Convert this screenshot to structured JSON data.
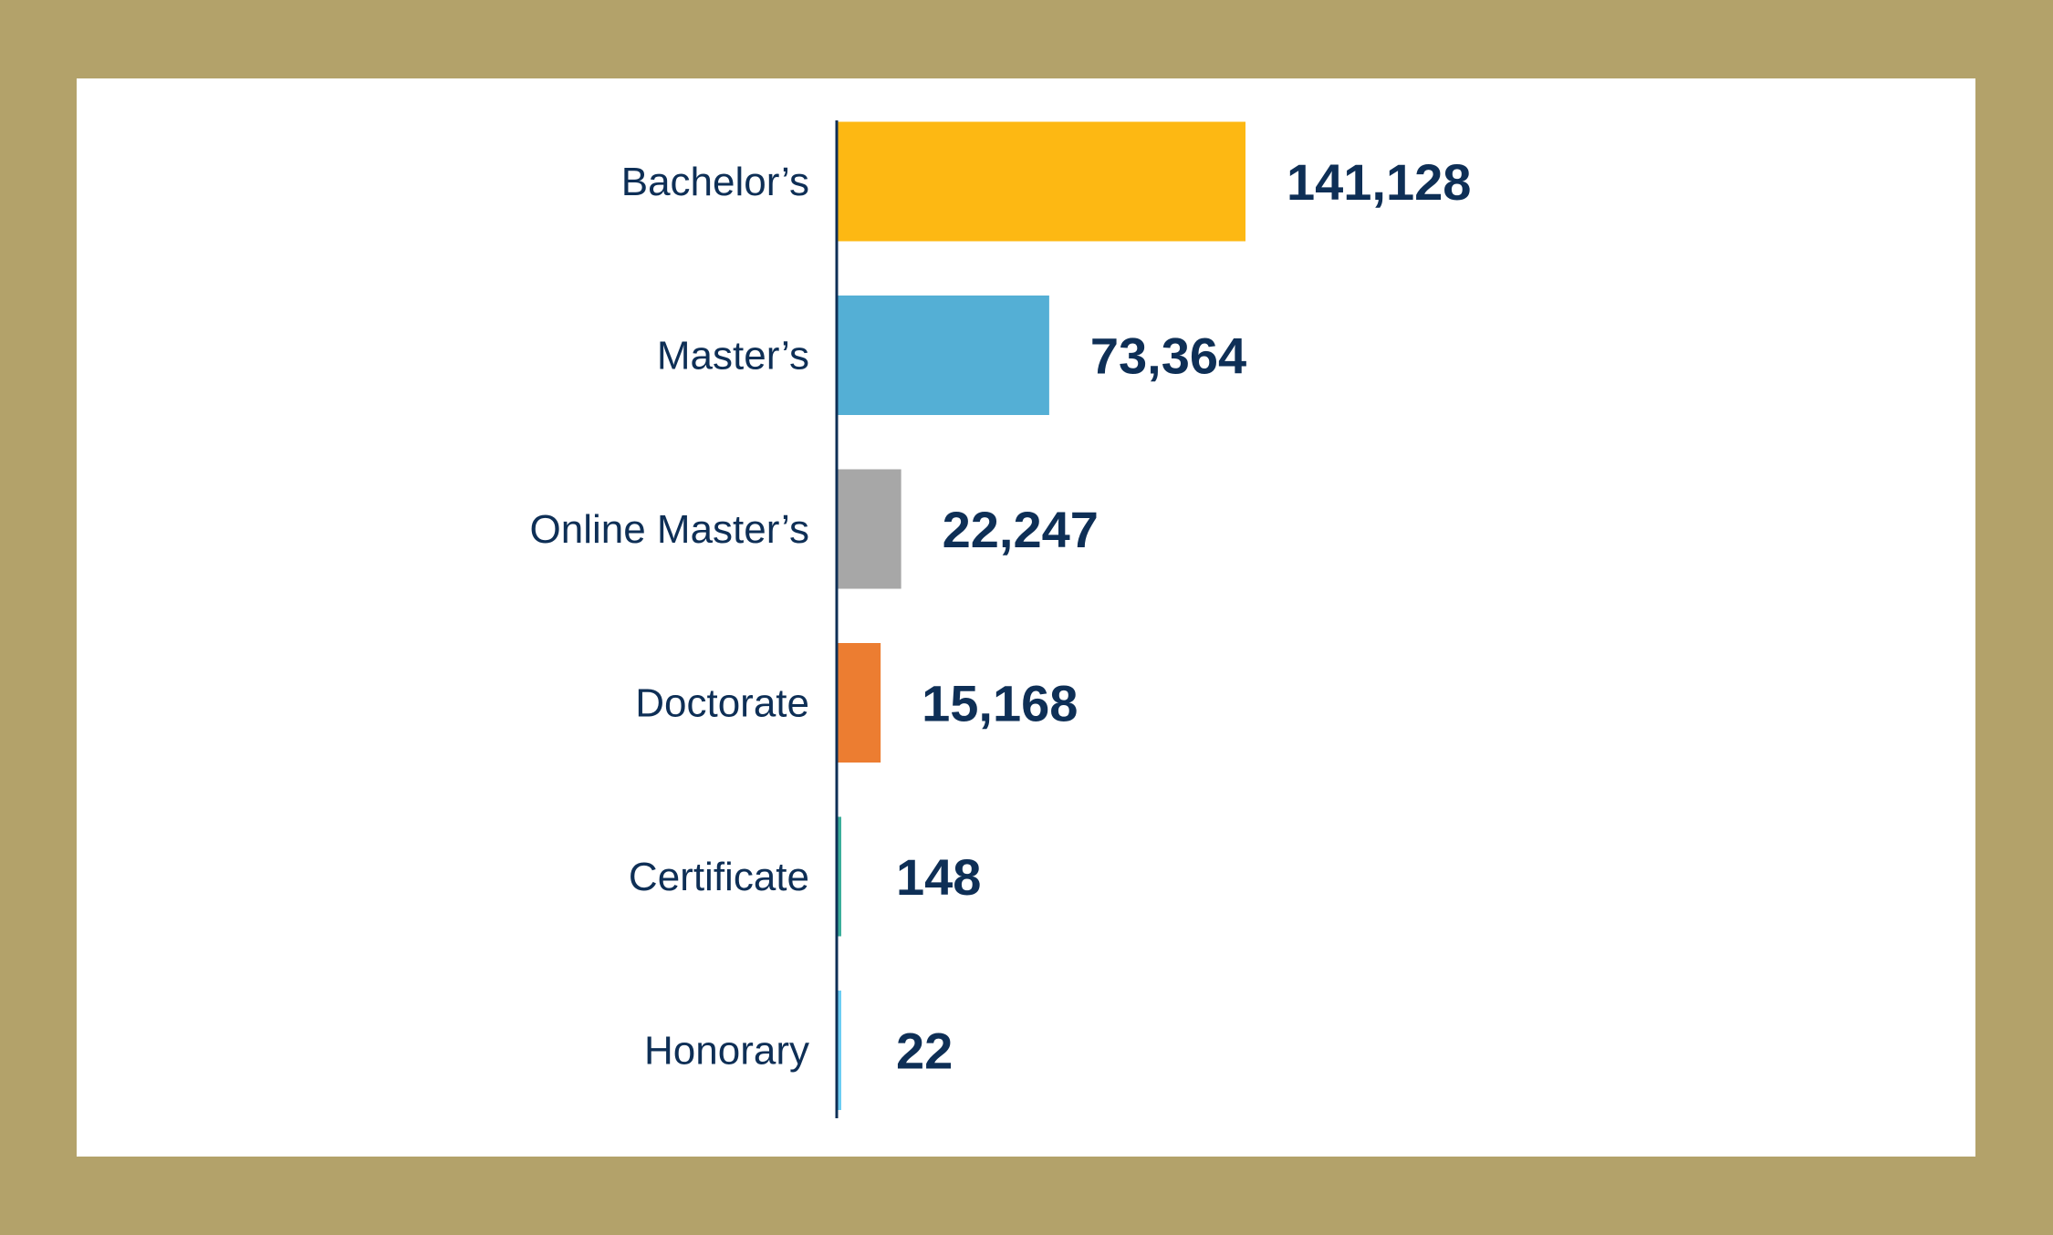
{
  "colors": {
    "frame": "#B3A26A",
    "panel": "#FFFFFF",
    "text": "#0E2F56",
    "axis": "#0E2F56"
  },
  "chart_data": {
    "type": "bar",
    "orientation": "horizontal",
    "categories": [
      "Bachelor’s",
      "Master’s",
      "Online Master’s",
      "Doctorate",
      "Certificate",
      "Honorary"
    ],
    "values": [
      141128,
      73364,
      22247,
      15168,
      148,
      22
    ],
    "value_labels": [
      "141,128",
      "73,364",
      "22,247",
      "15,168",
      "148",
      "22"
    ],
    "bar_colors": [
      "#FDB813",
      "#54AFD5",
      "#A7A7A7",
      "#EC7D31",
      "#3BAE9A",
      "#6CCDF3"
    ],
    "xlim": [
      0,
      141128
    ],
    "grid": false,
    "legend": "none"
  }
}
